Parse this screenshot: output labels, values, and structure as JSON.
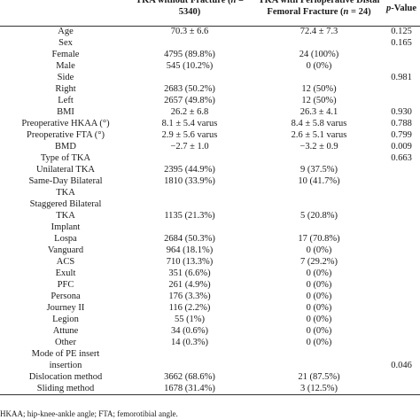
{
  "header": {
    "col1": "TKA without Fracture (n = 5340)",
    "col2": "TKA with Perioperative Distal Femoral Fracture (n = 24)",
    "col3": "p-Value"
  },
  "rows": [
    {
      "label": "Age",
      "v1": "70.3 ± 6.6",
      "v2": "72.4 ± 7.3",
      "p": "0.125"
    },
    {
      "label": "Sex",
      "v1": "",
      "v2": "",
      "p": "0.165"
    },
    {
      "label": "Female",
      "v1": "4795 (89.8%)",
      "v2": "24 (100%)",
      "p": ""
    },
    {
      "label": "Male",
      "v1": "545 (10.2%)",
      "v2": "0 (0%)",
      "p": ""
    },
    {
      "label": "Side",
      "v1": "",
      "v2": "",
      "p": "0.981"
    },
    {
      "label": "Right",
      "v1": "2683 (50.2%)",
      "v2": "12 (50%)",
      "p": ""
    },
    {
      "label": "Left",
      "v1": "2657 (49.8%)",
      "v2": "12 (50%)",
      "p": ""
    },
    {
      "label": "BMI",
      "v1": "26.2 ± 6.8",
      "v2": "26.3 ± 4.1",
      "p": "0.930"
    },
    {
      "label": "Preoperative HKAA (°)",
      "v1": "8.1 ± 5.4 varus",
      "v2": "8.4 ± 5.8 varus",
      "p": "0.788"
    },
    {
      "label": "Preoperative FTA (°)",
      "v1": "2.9 ± 5.6 varus",
      "v2": "2.6 ± 5.1 varus",
      "p": "0.799"
    },
    {
      "label": "BMD",
      "v1": "−2.7 ± 1.0",
      "v2": "−3.2 ± 0.9",
      "p": "0.009"
    },
    {
      "label": "Type of TKA",
      "v1": "",
      "v2": "",
      "p": "0.663"
    },
    {
      "label": "Unilateral TKA",
      "v1": "2395 (44.9%)",
      "v2": "9 (37.5%)",
      "p": ""
    },
    {
      "label": "Same-Day Bilateral",
      "label2": "TKA",
      "v1": "1810 (33.9%)",
      "v2": "10 (41.7%)",
      "p": "",
      "tall": true,
      "valsOnFirst": true
    },
    {
      "label": "Staggered Bilateral",
      "label2": "TKA",
      "v1": "1135 (21.3%)",
      "v2": "5 (20.8%)",
      "p": "",
      "tall": true,
      "valsOnFirst": false
    },
    {
      "label": "Implant",
      "v1": "",
      "v2": "",
      "p": ""
    },
    {
      "label": "Lospa",
      "v1": "2684 (50.3%)",
      "v2": "17 (70.8%)",
      "p": ""
    },
    {
      "label": "Vanguard",
      "v1": "964 (18.1%)",
      "v2": "0 (0%)",
      "p": ""
    },
    {
      "label": "ACS",
      "v1": "710 (13.3%)",
      "v2": "7 (29.2%)",
      "p": ""
    },
    {
      "label": "Exult",
      "v1": "351 (6.6%)",
      "v2": "0 (0%)",
      "p": ""
    },
    {
      "label": "PFC",
      "v1": "261 (4.9%)",
      "v2": "0 (0%)",
      "p": ""
    },
    {
      "label": "Persona",
      "v1": "176 (3.3%)",
      "v2": "0 (0%)",
      "p": ""
    },
    {
      "label": "Journey II",
      "v1": "116 (2.2%)",
      "v2": "0 (0%)",
      "p": ""
    },
    {
      "label": "Legion",
      "v1": "55 (1%)",
      "v2": "0 (0%)",
      "p": ""
    },
    {
      "label": "Attune",
      "v1": "34 (0.6%)",
      "v2": "0 (0%)",
      "p": ""
    },
    {
      "label": "Other",
      "v1": "14 (0.3%)",
      "v2": "0 (0%)",
      "p": ""
    },
    {
      "label": "Mode of PE insert",
      "label2": "insertion",
      "v1": "",
      "v2": "",
      "p": "0.046",
      "tall": true,
      "valsOnFirst": false
    },
    {
      "label": "Dislocation method",
      "v1": "3662 (68.6%)",
      "v2": "21 (87.5%)",
      "p": ""
    },
    {
      "label": "Sliding method",
      "v1": "1678 (31.4%)",
      "v2": "3 (12.5%)",
      "p": ""
    }
  ],
  "footnote": "HKAA; hip-knee-ankle angle; FTA; femorotibial angle."
}
